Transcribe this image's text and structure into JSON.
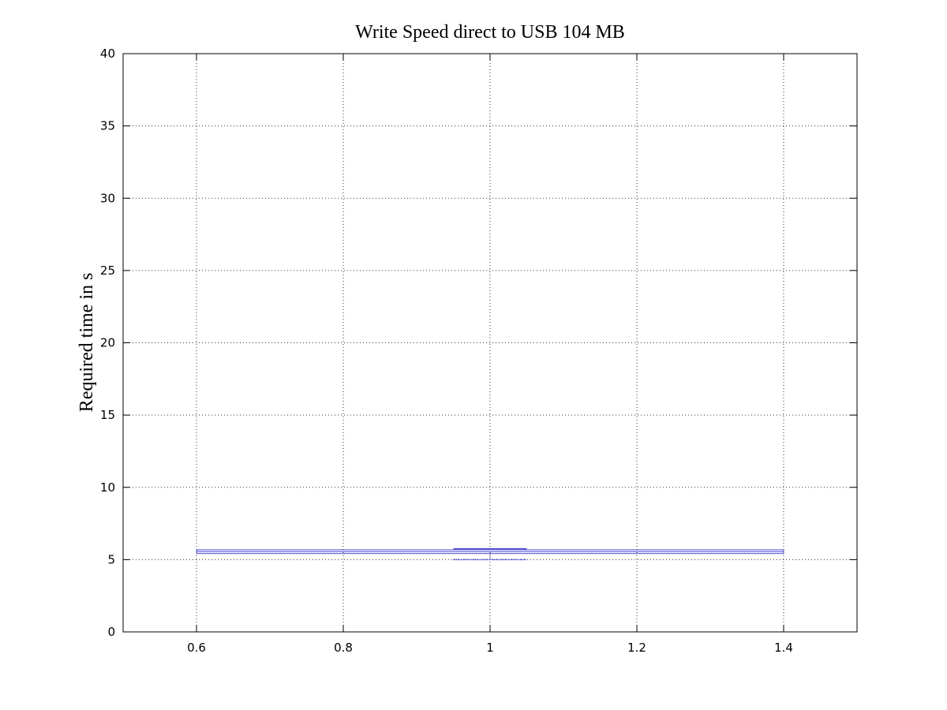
{
  "chart_data": {
    "type": "box",
    "title": "Write Speed direct to USB 104 MB",
    "xlabel": "",
    "ylabel": "Required time in s",
    "xlim": [
      0.5,
      1.5
    ],
    "ylim": [
      0,
      40
    ],
    "xticks": [
      0.6,
      0.8,
      1,
      1.2,
      1.4
    ],
    "xtick_labels": [
      "0.6",
      "0.8",
      "1",
      "1.2",
      "1.4"
    ],
    "yticks": [
      0,
      5,
      10,
      15,
      20,
      25,
      30,
      35,
      40
    ],
    "ytick_labels": [
      "0",
      "5",
      "10",
      "15",
      "20",
      "25",
      "30",
      "35",
      "40"
    ],
    "grid": true,
    "color": "#4b4bd1",
    "boxes": [
      {
        "position": 1,
        "box_left": 0.6,
        "box_right": 1.4,
        "whisker_cap_left": 0.95,
        "whisker_cap_right": 1.05,
        "whisker_high": 5.75,
        "q3": 5.68,
        "median": 5.55,
        "q1": 5.42,
        "whisker_low": 5.0
      }
    ]
  }
}
